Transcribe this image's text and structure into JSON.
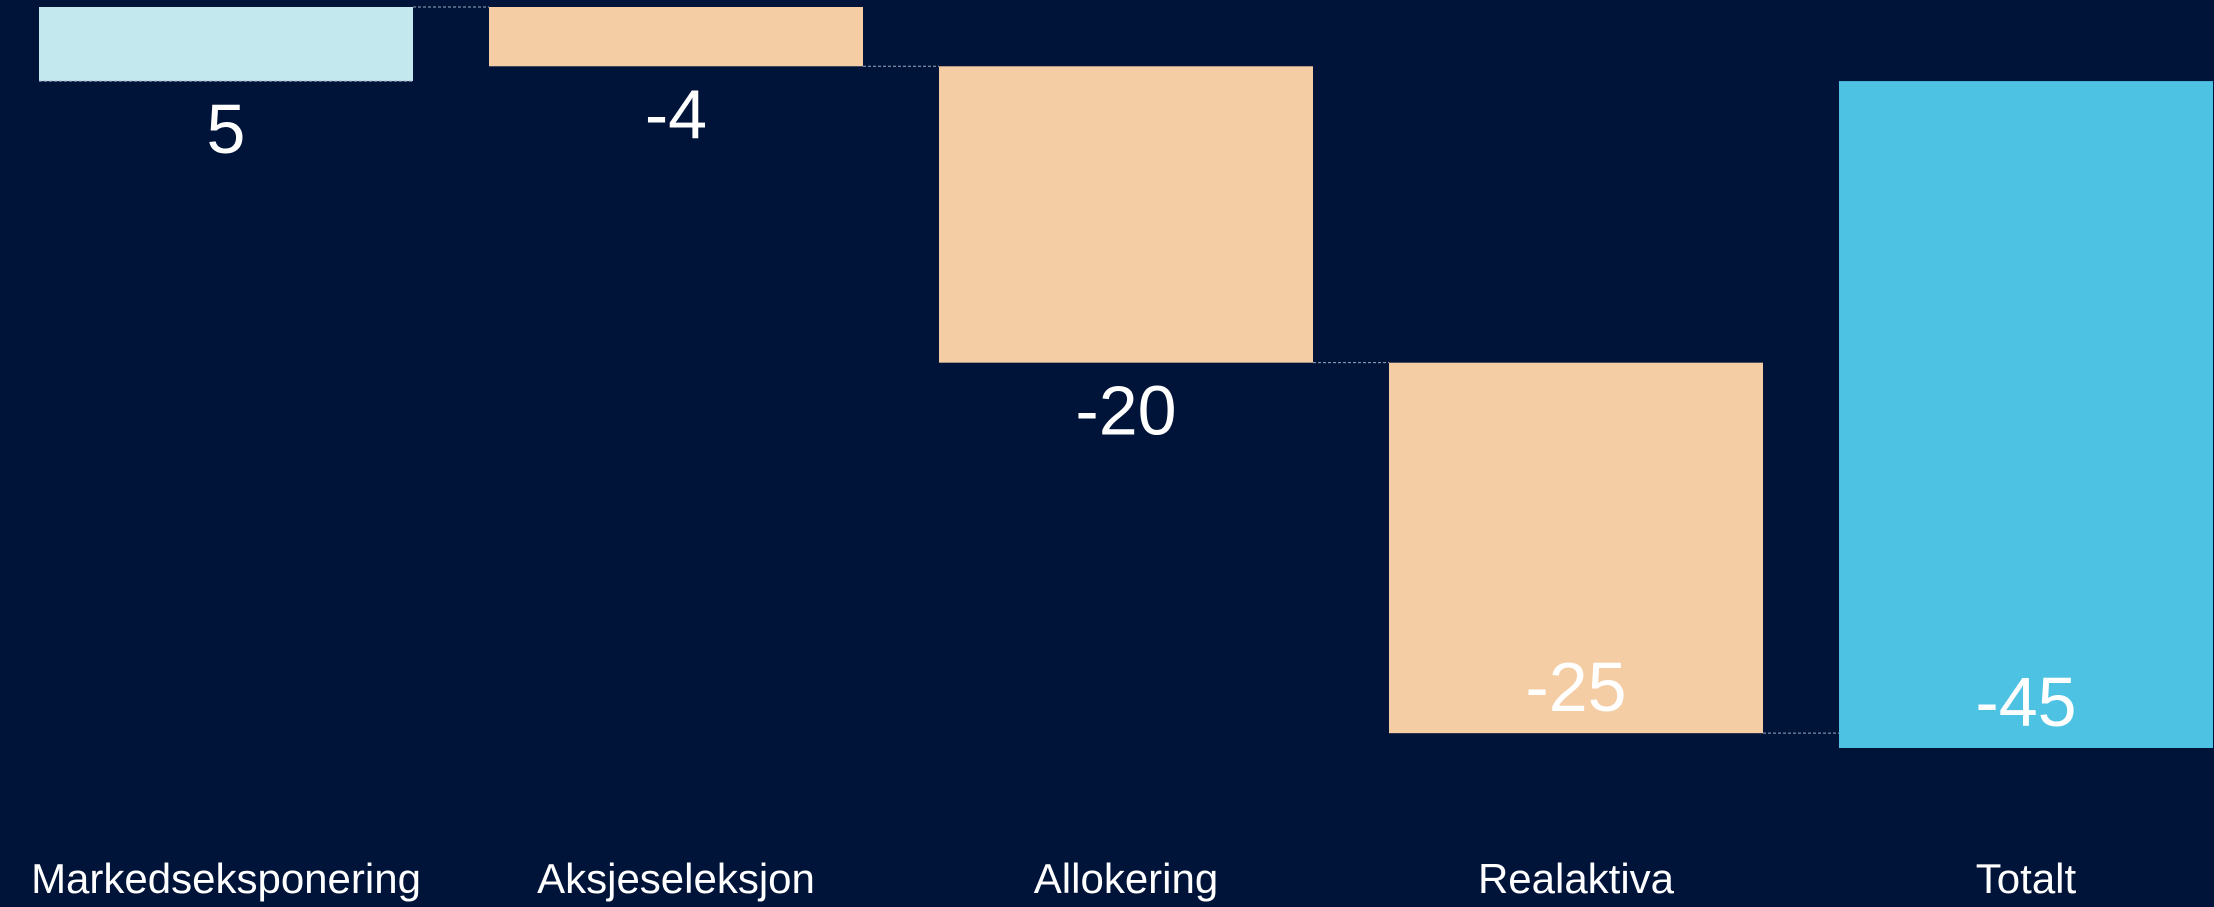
{
  "chart_data": {
    "type": "bar",
    "subtype": "waterfall",
    "categories": [
      "Markedseksponering",
      "Aksjeseleksjon",
      "Allokering",
      "Realaktiva",
      "Totalt"
    ],
    "values": [
      5,
      -4,
      -20,
      -25,
      -45
    ],
    "value_labels": [
      "5",
      "-4",
      "-20",
      "-25",
      "-45"
    ],
    "is_total": [
      false,
      false,
      false,
      false,
      true
    ],
    "ylim": [
      -45,
      5
    ],
    "grid": false,
    "legend": "none",
    "colors": {
      "background": "#00143a",
      "positive": "#c3e9ee",
      "negative": "#f4cda4",
      "total": "#4ec2e3",
      "text": "#ffffff",
      "connector": "#9aa6bd"
    }
  }
}
